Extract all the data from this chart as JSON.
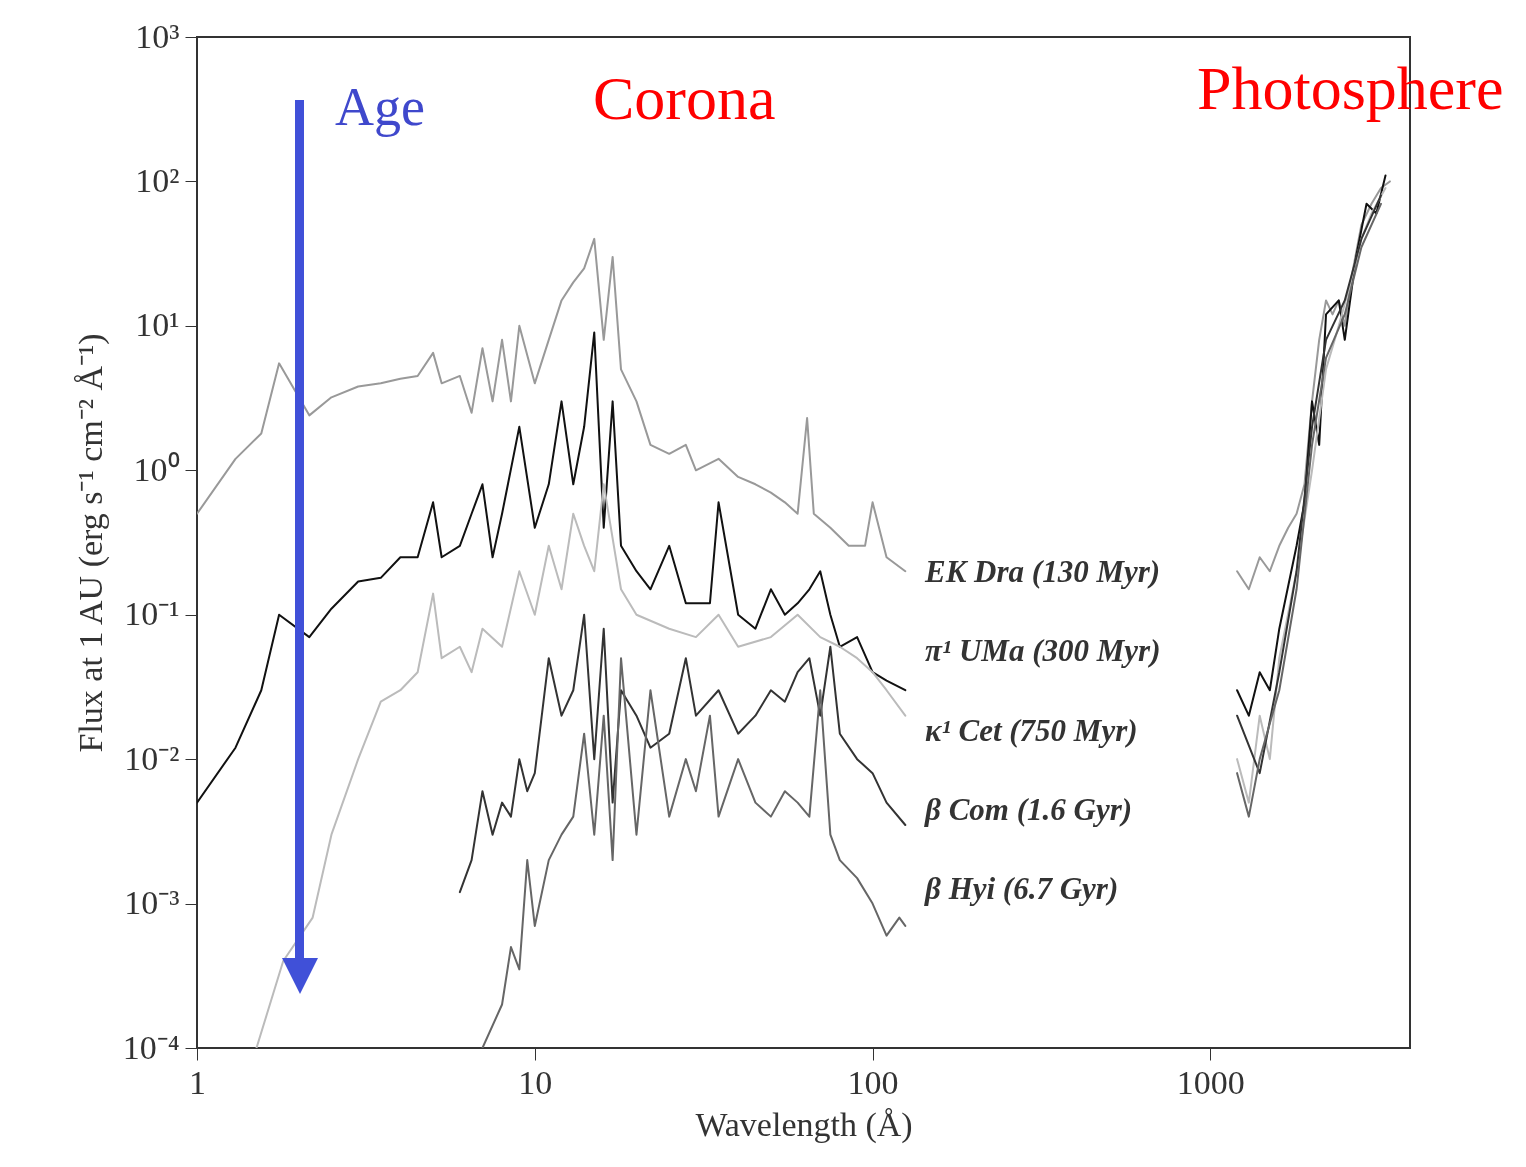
{
  "chart_data": {
    "type": "line",
    "xlabel": "Wavelength (Å)",
    "ylabel": "Flux at 1 AU (erg s⁻¹ cm⁻² Å⁻¹)",
    "xlim": [
      1,
      3900
    ],
    "xticks": [
      1,
      10,
      100,
      1000
    ],
    "ylim": [
      0.0001,
      1000
    ],
    "yticks": [
      {
        "value": 0.0001,
        "label": "10⁻⁴"
      },
      {
        "value": 0.001,
        "label": "10⁻³"
      },
      {
        "value": 0.01,
        "label": "10⁻²"
      },
      {
        "value": 0.1,
        "label": "10⁻¹"
      },
      {
        "value": 1,
        "label": "10⁰"
      },
      {
        "value": 10,
        "label": "10¹"
      },
      {
        "value": 100,
        "label": "10²"
      },
      {
        "value": 1000,
        "label": "10³"
      }
    ],
    "log": "xy",
    "legend": false,
    "annotations": [
      "Age",
      "Corona",
      "Photosphere"
    ],
    "series": [
      {
        "name": "EK Dra (130 Myr)",
        "color": "#999999",
        "x": [
          1,
          1.3,
          1.55,
          1.75,
          2.15,
          2.5,
          3,
          3.5,
          4,
          4.5,
          5,
          5.3,
          6,
          6.5,
          7,
          7.5,
          8,
          8.5,
          9,
          10,
          11,
          12,
          13,
          14,
          15,
          16,
          17,
          18,
          20,
          22,
          25,
          28,
          30,
          35,
          40,
          45,
          50,
          55,
          60,
          64,
          67,
          75,
          85,
          95,
          100,
          110,
          125,
          500,
          1200,
          1300,
          1400,
          1500,
          1600,
          1700,
          1800,
          1900,
          2000,
          2100,
          2200,
          2300,
          2400,
          2500,
          2600,
          2800,
          3000,
          3200,
          3400
        ],
        "values": [
          0.5,
          1.2,
          1.8,
          5.5,
          2.4,
          3.2,
          3.8,
          4,
          4.3,
          4.5,
          6.5,
          4,
          4.5,
          2.5,
          7,
          3,
          8,
          3,
          10,
          4,
          8,
          15,
          20,
          25,
          40,
          8,
          30,
          5,
          3,
          1.5,
          1.3,
          1.5,
          1,
          1.2,
          0.9,
          0.8,
          0.7,
          0.6,
          0.5,
          2.3,
          0.5,
          0.4,
          0.3,
          0.3,
          0.6,
          0.25,
          0.2,
          null,
          0.2,
          0.15,
          0.25,
          0.2,
          0.3,
          0.4,
          0.5,
          0.8,
          3,
          8,
          15,
          12,
          15,
          10,
          20,
          50,
          70,
          90,
          100
        ]
      },
      {
        "name": "π¹ UMa (300 Myr)",
        "color": "#111111",
        "x": [
          1,
          1.3,
          1.55,
          1.75,
          2.15,
          2.5,
          3,
          3.5,
          4,
          4.5,
          5,
          5.3,
          6,
          6.5,
          7,
          7.5,
          8,
          9,
          10,
          11,
          12,
          13,
          14,
          15,
          16,
          17,
          18,
          20,
          22,
          25,
          28,
          30,
          33,
          35,
          40,
          45,
          50,
          55,
          60,
          65,
          70,
          75,
          80,
          90,
          100,
          110,
          125,
          500,
          1200,
          1300,
          1400,
          1500,
          1600,
          1800,
          1900,
          2000,
          2100,
          2200,
          2400,
          2500,
          2700,
          2900,
          3100,
          3300
        ],
        "values": [
          0.005,
          0.012,
          0.03,
          0.1,
          0.07,
          0.11,
          0.17,
          0.18,
          0.25,
          0.25,
          0.6,
          0.25,
          0.3,
          0.5,
          0.8,
          0.25,
          0.5,
          2,
          0.4,
          0.8,
          3,
          0.8,
          2,
          9,
          0.4,
          3,
          0.3,
          0.2,
          0.15,
          0.3,
          0.12,
          0.12,
          0.12,
          0.6,
          0.1,
          0.08,
          0.15,
          0.1,
          0.12,
          0.15,
          0.2,
          0.1,
          0.06,
          0.07,
          0.04,
          0.035,
          0.03,
          null,
          0.03,
          0.02,
          0.04,
          0.03,
          0.08,
          0.3,
          0.6,
          3,
          1.5,
          12,
          15,
          8,
          30,
          70,
          60,
          110
        ]
      },
      {
        "name": "κ¹ Cet (750 Myr)",
        "color": "#bbbbbb",
        "x": [
          1.5,
          1.8,
          2.2,
          2.5,
          3,
          3.5,
          4,
          4.5,
          5,
          5.3,
          6,
          6.5,
          7,
          8,
          9,
          10,
          11,
          12,
          13,
          14,
          15,
          16,
          18,
          20,
          25,
          30,
          35,
          40,
          50,
          60,
          70,
          80,
          90,
          100,
          110,
          125,
          500,
          1200,
          1300,
          1400,
          1500,
          1600,
          1800,
          2000,
          2200,
          2400,
          2600,
          2800,
          3000,
          3300
        ],
        "values": [
          0.0001,
          0.0004,
          0.0008,
          0.003,
          0.01,
          0.025,
          0.03,
          0.04,
          0.14,
          0.05,
          0.06,
          0.04,
          0.08,
          0.06,
          0.2,
          0.1,
          0.3,
          0.15,
          0.5,
          0.3,
          0.2,
          0.8,
          0.15,
          0.1,
          0.08,
          0.07,
          0.1,
          0.06,
          0.07,
          0.1,
          0.07,
          0.06,
          0.05,
          0.04,
          0.03,
          0.02,
          null,
          0.01,
          0.005,
          0.02,
          0.01,
          0.05,
          0.2,
          1,
          5,
          10,
          20,
          40,
          60,
          90
        ]
      },
      {
        "name": "β Com (1.6 Gyr)",
        "color": "#333333",
        "x": [
          6,
          6.5,
          7,
          7.5,
          8,
          8.5,
          9,
          9.5,
          10,
          11,
          12,
          13,
          14,
          15,
          16,
          17,
          18,
          20,
          22,
          25,
          28,
          30,
          35,
          40,
          45,
          50,
          55,
          60,
          65,
          70,
          75,
          80,
          90,
          100,
          110,
          125,
          500,
          1200,
          1400,
          1600,
          1800,
          2000,
          2200,
          2500,
          2800,
          3200
        ],
        "values": [
          0.0012,
          0.002,
          0.006,
          0.003,
          0.005,
          0.004,
          0.01,
          0.006,
          0.008,
          0.05,
          0.02,
          0.03,
          0.1,
          0.01,
          0.08,
          0.005,
          0.03,
          0.02,
          0.012,
          0.015,
          0.05,
          0.02,
          0.03,
          0.015,
          0.02,
          0.03,
          0.025,
          0.04,
          0.05,
          0.02,
          0.06,
          0.015,
          0.01,
          0.008,
          0.005,
          0.0035,
          null,
          0.02,
          0.008,
          0.04,
          0.2,
          2,
          8,
          15,
          40,
          80
        ]
      },
      {
        "name": "β Hyi (6.7 Gyr)",
        "color": "#666666",
        "x": [
          7,
          8,
          8.5,
          9,
          9.5,
          10,
          11,
          12,
          13,
          14,
          15,
          16,
          17,
          18,
          20,
          22,
          25,
          28,
          30,
          33,
          35,
          40,
          45,
          50,
          55,
          60,
          65,
          70,
          75,
          80,
          90,
          100,
          110,
          120,
          125,
          500,
          1200,
          1300,
          1400,
          1600,
          1800,
          2000,
          2200,
          2500,
          2800,
          3200
        ],
        "values": [
          0.0001,
          0.0002,
          0.0005,
          0.00035,
          0.002,
          0.0007,
          0.002,
          0.003,
          0.004,
          0.015,
          0.003,
          0.02,
          0.002,
          0.05,
          0.003,
          0.03,
          0.004,
          0.01,
          0.006,
          0.02,
          0.004,
          0.01,
          0.005,
          0.004,
          0.006,
          0.005,
          0.004,
          0.03,
          0.003,
          0.002,
          0.0015,
          0.001,
          0.0006,
          0.0008,
          0.0007,
          null,
          0.008,
          0.004,
          0.01,
          0.03,
          0.15,
          1.5,
          6,
          12,
          35,
          70
        ]
      }
    ]
  }
}
